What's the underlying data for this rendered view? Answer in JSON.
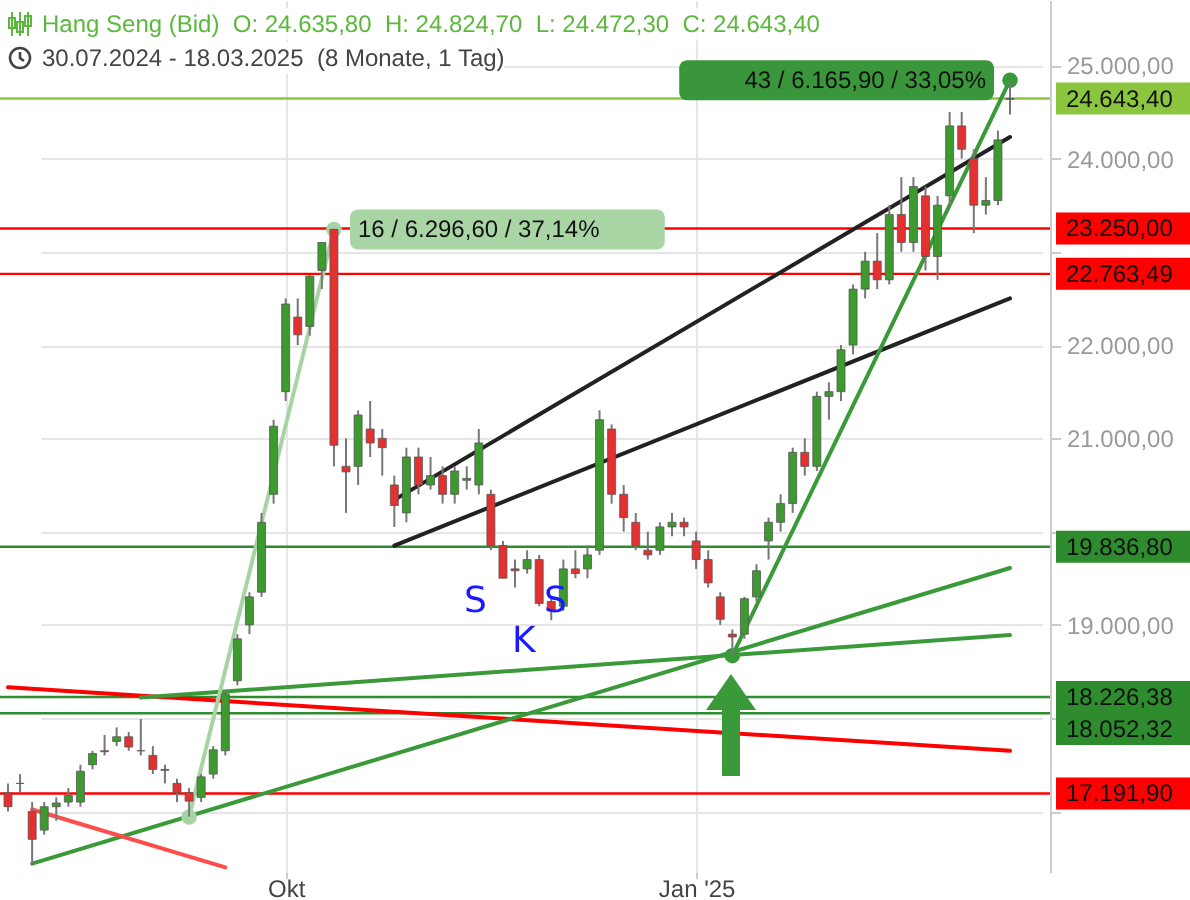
{
  "chart_data": {
    "type": "candlestick",
    "title": "Hang Seng (Bid)  O: 24.635,80  H: 24.824,70  L: 24.472,30  C: 24.643,40",
    "subtitle": "30.07.2024 - 18.03.2025  (8 Monate, 1 Tag)",
    "categories": [
      null,
      null,
      null,
      null,
      null,
      null,
      null,
      null,
      null,
      null,
      null,
      null,
      null,
      null,
      null,
      null,
      null,
      null,
      null,
      null,
      null,
      null,
      null,
      "Okt",
      null,
      null,
      null,
      null,
      null,
      null,
      null,
      null,
      null,
      null,
      null,
      null,
      null,
      null,
      null,
      null,
      null,
      null,
      null,
      null,
      null,
      null,
      null,
      null,
      null,
      null,
      null,
      null,
      null,
      null,
      null,
      null,
      null,
      "Jan '25",
      null,
      null,
      null,
      null,
      null,
      null,
      null,
      null,
      null,
      null,
      null,
      null,
      null,
      null,
      null,
      null,
      null,
      null,
      null,
      null,
      null,
      null,
      null,
      null,
      null,
      null
    ],
    "ohlc": [
      [
        17200,
        17300,
        17000,
        17050
      ],
      [
        17300,
        17400,
        17200,
        17300
      ],
      [
        17000,
        17100,
        16440,
        16700
      ],
      [
        16800,
        17100,
        16750,
        17050
      ],
      [
        17050,
        17150,
        16900,
        17090
      ],
      [
        17100,
        17250,
        17050,
        17170
      ],
      [
        17100,
        17500,
        17050,
        17430
      ],
      [
        17500,
        17650,
        17450,
        17620
      ],
      [
        17650,
        17820,
        17600,
        17640
      ],
      [
        17750,
        17900,
        17700,
        17800
      ],
      [
        17800,
        17850,
        17650,
        17690
      ],
      [
        17650,
        17990,
        17600,
        17650
      ],
      [
        17600,
        17700,
        17400,
        17450
      ],
      [
        17450,
        17500,
        17300,
        17440
      ],
      [
        17300,
        17350,
        17100,
        17200
      ],
      [
        17200,
        17250,
        16944,
        17110
      ],
      [
        17150,
        17400,
        17100,
        17370
      ],
      [
        17400,
        17700,
        17350,
        17660
      ],
      [
        17650,
        18300,
        17600,
        18260
      ],
      [
        18400,
        18900,
        18350,
        18850
      ],
      [
        19000,
        19350,
        18900,
        19300
      ],
      [
        19350,
        20200,
        19300,
        20100
      ],
      [
        20400,
        21200,
        20300,
        21130
      ],
      [
        21500,
        22500,
        21400,
        22440
      ],
      [
        22300,
        22500,
        22000,
        22110
      ],
      [
        22200,
        22750,
        22100,
        22740
      ],
      [
        22800,
        23100,
        22600,
        23100
      ],
      [
        23241,
        23241,
        20700,
        20926
      ],
      [
        20700,
        21000,
        20200,
        20640
      ],
      [
        20700,
        21300,
        20500,
        21250
      ],
      [
        21100,
        21400,
        20800,
        20950
      ],
      [
        21000,
        21100,
        20600,
        20900
      ],
      [
        20500,
        20600,
        20050,
        20280
      ],
      [
        20200,
        20900,
        20100,
        20800
      ],
      [
        20800,
        20900,
        20400,
        20500
      ],
      [
        20500,
        20800,
        20450,
        20600
      ],
      [
        20600,
        20700,
        20300,
        20400
      ],
      [
        20400,
        20700,
        20300,
        20650
      ],
      [
        20550,
        20700,
        20450,
        20570
      ],
      [
        20500,
        21100,
        20400,
        20950
      ],
      [
        20400,
        20450,
        19800,
        19850
      ],
      [
        19850,
        19900,
        19500,
        19500
      ],
      [
        19600,
        19700,
        19400,
        19580
      ],
      [
        19600,
        19800,
        19550,
        19700
      ],
      [
        19700,
        19750,
        19200,
        19230
      ],
      [
        19250,
        19300,
        19050,
        19160
      ],
      [
        19200,
        19700,
        19150,
        19600
      ],
      [
        19600,
        19800,
        19500,
        19550
      ],
      [
        19600,
        19850,
        19500,
        19750
      ],
      [
        19800,
        21300,
        19750,
        21200
      ],
      [
        21100,
        21150,
        20300,
        20400
      ],
      [
        20400,
        20500,
        20000,
        20150
      ],
      [
        20100,
        20200,
        19800,
        19850
      ],
      [
        19800,
        20000,
        19700,
        19750
      ],
      [
        19800,
        20100,
        19750,
        20050
      ],
      [
        20050,
        20200,
        19950,
        20100
      ],
      [
        20100,
        20150,
        19950,
        20050
      ],
      [
        19900,
        20000,
        19600,
        19700
      ],
      [
        19700,
        19800,
        19400,
        19450
      ],
      [
        19300,
        19350,
        19000,
        19060
      ],
      [
        18900,
        18950,
        18671,
        18870
      ],
      [
        18900,
        19300,
        18850,
        19280
      ],
      [
        19300,
        19650,
        19250,
        19580
      ],
      [
        19900,
        20150,
        19700,
        20100
      ],
      [
        20100,
        20400,
        20000,
        20300
      ],
      [
        20300,
        20900,
        20200,
        20850
      ],
      [
        20850,
        21000,
        20600,
        20700
      ],
      [
        20700,
        21500,
        20650,
        21450
      ],
      [
        21450,
        21600,
        21200,
        21500
      ],
      [
        21500,
        22000,
        21400,
        21950
      ],
      [
        22000,
        22650,
        21900,
        22600
      ],
      [
        22600,
        23000,
        22500,
        22900
      ],
      [
        22900,
        23200,
        22600,
        22700
      ],
      [
        22700,
        23500,
        22650,
        23400
      ],
      [
        23400,
        23800,
        23000,
        23100
      ],
      [
        23100,
        23800,
        23000,
        23700
      ],
      [
        23600,
        23700,
        22800,
        22950
      ],
      [
        22950,
        23600,
        22700,
        23500
      ],
      [
        23600,
        24500,
        23500,
        24350
      ],
      [
        24350,
        24500,
        24000,
        24100
      ],
      [
        24000,
        24100,
        23200,
        23500
      ],
      [
        23500,
        23800,
        23400,
        23550
      ],
      [
        23550,
        24300,
        23500,
        24200
      ],
      [
        24635.8,
        24824.7,
        24472.3,
        24643.4
      ]
    ],
    "series": [
      {
        "type": "line",
        "color": "#ff0000",
        "values": [
          18330,
          null,
          null,
          null,
          null,
          null,
          null,
          null,
          null,
          null,
          null,
          null,
          null,
          null,
          null,
          null,
          null,
          null,
          null,
          null,
          null,
          null,
          null,
          null,
          null,
          null,
          null,
          null,
          null,
          null,
          null,
          null,
          null,
          null,
          null,
          null,
          null,
          null,
          null,
          null,
          null,
          null,
          null,
          null,
          null,
          null,
          null,
          null,
          null,
          null,
          null,
          null,
          null,
          null,
          null,
          null,
          null,
          null,
          null,
          null,
          null,
          null,
          null,
          null,
          null,
          null,
          null,
          null,
          null,
          null,
          null,
          null,
          null,
          null,
          null,
          null,
          null,
          null,
          null,
          null,
          null,
          null,
          null,
          17650
        ]
      },
      {
        "type": "line",
        "color": "#3a9a3a",
        "values": [
          null,
          null,
          16440,
          null,
          null,
          null,
          null,
          null,
          null,
          null,
          null,
          null,
          null,
          null,
          null,
          null,
          null,
          null,
          null,
          null,
          null,
          null,
          null,
          null,
          null,
          null,
          null,
          null,
          null,
          null,
          null,
          null,
          null,
          null,
          null,
          null,
          null,
          null,
          null,
          null,
          null,
          null,
          null,
          null,
          null,
          null,
          null,
          null,
          null,
          null,
          null,
          null,
          null,
          null,
          null,
          null,
          null,
          null,
          null,
          null,
          null,
          null,
          null,
          null,
          null,
          null,
          null,
          null,
          null,
          null,
          null,
          null,
          null,
          null,
          null,
          null,
          null,
          null,
          null,
          null,
          null,
          null,
          null,
          19610
        ]
      },
      {
        "type": "line",
        "color": "#3a9a3a",
        "values": [
          null,
          null,
          null,
          null,
          null,
          null,
          null,
          null,
          null,
          null,
          null,
          18220,
          null,
          null,
          null,
          null,
          null,
          null,
          null,
          null,
          null,
          null,
          null,
          null,
          null,
          null,
          null,
          null,
          null,
          null,
          null,
          null,
          null,
          null,
          null,
          null,
          null,
          null,
          null,
          null,
          null,
          null,
          null,
          null,
          null,
          null,
          null,
          null,
          null,
          null,
          null,
          null,
          null,
          null,
          null,
          null,
          null,
          null,
          null,
          null,
          null,
          null,
          null,
          null,
          null,
          null,
          null,
          null,
          null,
          null,
          null,
          null,
          null,
          null,
          null,
          null,
          null,
          null,
          null,
          null,
          null,
          null,
          null,
          18890
        ]
      },
      {
        "type": "line",
        "color": "#222222",
        "values": [
          null,
          null,
          null,
          null,
          null,
          null,
          null,
          null,
          null,
          null,
          null,
          null,
          null,
          null,
          null,
          null,
          null,
          null,
          null,
          null,
          null,
          null,
          null,
          null,
          null,
          null,
          null,
          null,
          null,
          null,
          null,
          null,
          20340,
          null,
          null,
          null,
          null,
          null,
          null,
          null,
          null,
          null,
          null,
          null,
          null,
          null,
          null,
          null,
          null,
          null,
          null,
          null,
          null,
          null,
          null,
          null,
          null,
          null,
          null,
          null,
          null,
          null,
          null,
          null,
          null,
          null,
          null,
          null,
          null,
          null,
          null,
          null,
          null,
          null,
          null,
          null,
          null,
          null,
          null,
          null,
          null,
          null,
          null,
          24230
        ]
      },
      {
        "type": "line",
        "color": "#222222",
        "values": [
          null,
          null,
          null,
          null,
          null,
          null,
          null,
          null,
          null,
          null,
          null,
          null,
          null,
          null,
          null,
          null,
          null,
          null,
          null,
          null,
          null,
          null,
          null,
          null,
          null,
          null,
          null,
          null,
          null,
          null,
          null,
          null,
          19850,
          null,
          null,
          null,
          null,
          null,
          null,
          null,
          null,
          null,
          null,
          null,
          null,
          null,
          null,
          null,
          null,
          null,
          null,
          null,
          null,
          null,
          null,
          null,
          null,
          null,
          null,
          null,
          null,
          null,
          null,
          null,
          null,
          null,
          null,
          null,
          null,
          null,
          null,
          null,
          null,
          null,
          null,
          null,
          null,
          null,
          null,
          null,
          null,
          null,
          null,
          22500
        ]
      },
      {
        "type": "line",
        "color": "#ff4d4d",
        "values": [
          null,
          null,
          17020,
          null,
          null,
          null,
          null,
          null,
          null,
          null,
          null,
          null,
          null,
          null,
          null,
          null,
          null,
          null,
          16400,
          null,
          null,
          null,
          null,
          null,
          null,
          null,
          null,
          null,
          null,
          null,
          null,
          null,
          null,
          null,
          null,
          null,
          null,
          null,
          null,
          null,
          null,
          null,
          null,
          null,
          null,
          null,
          null,
          null,
          null,
          null,
          null,
          null,
          null,
          null,
          null,
          null,
          null,
          null,
          null,
          null,
          null,
          null,
          null,
          null,
          null,
          null,
          null,
          null,
          null,
          null,
          null,
          null,
          null,
          null,
          null,
          null,
          null,
          null,
          null,
          null,
          null,
          null,
          null,
          null
        ]
      },
      {
        "type": "line",
        "color": "#a8d4a5",
        "marker": "circle",
        "values": [
          null,
          null,
          null,
          null,
          null,
          null,
          null,
          null,
          null,
          null,
          null,
          null,
          null,
          null,
          null,
          16940,
          null,
          null,
          null,
          null,
          null,
          null,
          null,
          null,
          null,
          null,
          null,
          23240,
          null,
          null,
          null,
          null,
          null,
          null,
          null,
          null,
          null,
          null,
          null,
          null,
          null,
          null,
          null,
          null,
          null,
          null,
          null,
          null,
          null,
          null,
          null,
          null,
          null,
          null,
          null,
          null,
          null,
          null,
          null,
          null,
          null,
          null,
          null,
          null,
          null,
          null,
          null,
          null,
          null,
          null,
          null,
          null,
          null,
          null,
          null,
          null,
          null,
          null,
          null,
          null,
          null,
          null,
          null,
          null
        ]
      },
      {
        "type": "line",
        "color": "#3a9a3a",
        "marker": "circle",
        "values": [
          null,
          null,
          null,
          null,
          null,
          null,
          null,
          null,
          null,
          null,
          null,
          null,
          null,
          null,
          null,
          null,
          null,
          null,
          null,
          null,
          null,
          null,
          null,
          null,
          null,
          null,
          null,
          null,
          null,
          null,
          null,
          null,
          null,
          null,
          null,
          null,
          null,
          null,
          null,
          null,
          null,
          null,
          null,
          null,
          null,
          null,
          null,
          null,
          null,
          null,
          null,
          null,
          null,
          null,
          null,
          null,
          null,
          null,
          null,
          null,
          18670,
          null,
          null,
          null,
          null,
          null,
          null,
          null,
          null,
          null,
          null,
          null,
          null,
          null,
          null,
          null,
          null,
          null,
          null,
          null,
          null,
          null,
          null,
          24840
        ]
      }
    ],
    "ref_lines": [
      {
        "axis": "y",
        "value": 24643.4,
        "label": "24.643,40",
        "color": "#8cc63f"
      },
      {
        "axis": "y",
        "value": 23250,
        "label": "23.250,00",
        "color": "#ff0000"
      },
      {
        "axis": "y",
        "value": 22763.49,
        "label": "22.763,49",
        "color": "#ff0000"
      },
      {
        "axis": "y",
        "value": 19836.8,
        "label": "19.836,80",
        "color": "#2e8b2e"
      },
      {
        "axis": "y",
        "value": 18226.38,
        "label": "18.226,38",
        "color": "#2e8b2e"
      },
      {
        "axis": "y",
        "value": 18052.32,
        "label": "18.052,32",
        "color": "#2e8b2e"
      },
      {
        "axis": "y",
        "value": 17191.9,
        "label": "17.191,90",
        "color": "#ff0000"
      }
    ],
    "annotations": [
      "16 / 6.296,60 / 37,14%",
      "43 / 6.165,90 / 33,05%",
      "S",
      "K",
      "S"
    ],
    "ylim": [
      16350,
      25700
    ],
    "yticks": [
      {
        "value": 17000,
        "label": null
      },
      {
        "value": 18000,
        "label": null
      },
      {
        "value": 19000,
        "label": "19.000,00"
      },
      {
        "value": 20000,
        "label": null
      },
      {
        "value": 21000,
        "label": "21.000,00"
      },
      {
        "value": 22000,
        "label": "22.000,00"
      },
      {
        "value": 23000,
        "label": null
      },
      {
        "value": 24000,
        "label": "24.000,00"
      },
      {
        "value": 25000,
        "label": "25.000,00"
      }
    ],
    "grid": true
  }
}
